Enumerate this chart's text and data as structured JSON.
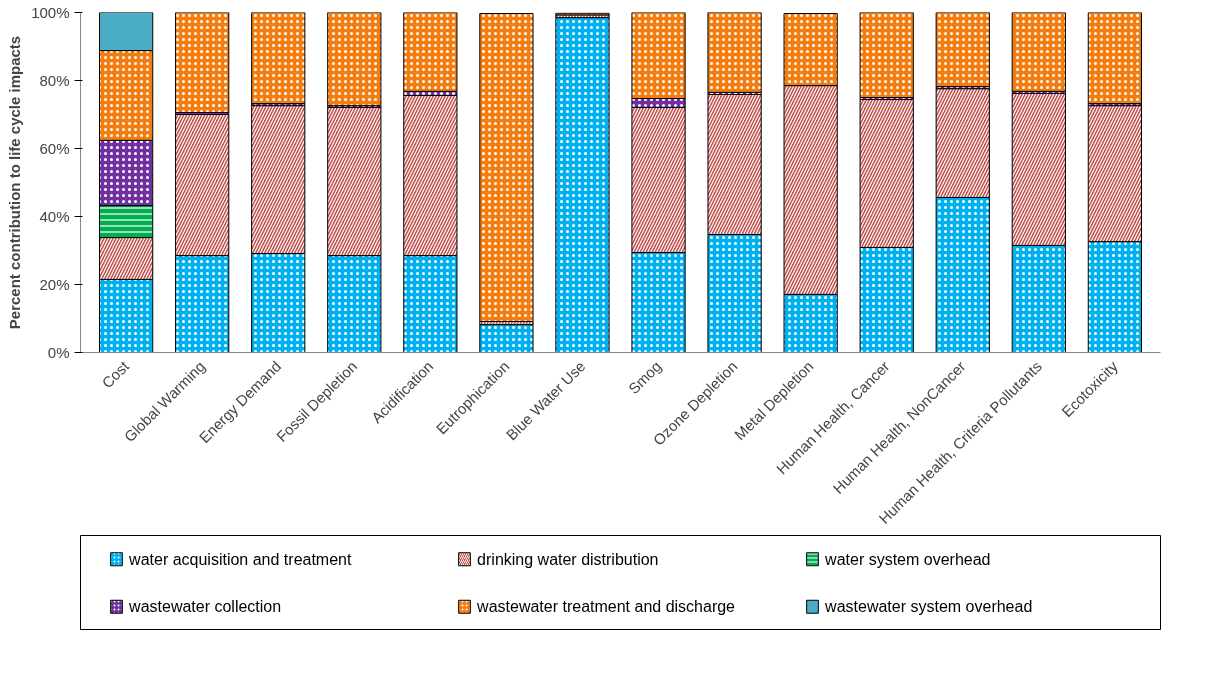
{
  "chart_data": {
    "type": "bar",
    "stacked": true,
    "ylabel": "Percent contribution to life cycle impacts",
    "categories": [
      "Cost",
      "Global Warming",
      "Energy Demand",
      "Fossil Depletion",
      "Acidification",
      "Eutrophication",
      "Blue Water Use",
      "Smog",
      "Ozone Depletion",
      "Metal Depletion",
      "Human Health, Cancer",
      "Human Health, NonCancer",
      "Human Health, Criteria Pollutants",
      "Ecotoxicity"
    ],
    "series": [
      {
        "name": "water acquisition and treatment",
        "color": "#00b0f0",
        "values": [
          21.5,
          28.5,
          29.1,
          28.5,
          28.5,
          8.2,
          98.5,
          29.4,
          34.7,
          17.1,
          30.9,
          45.6,
          31.5,
          32.6
        ]
      },
      {
        "name": "drinking water distribution",
        "color": "#c0504d",
        "values": [
          12.3,
          41.5,
          43.5,
          43.6,
          47.1,
          0.9,
          0.8,
          42.7,
          41.2,
          61.4,
          43.5,
          32.0,
          44.7,
          40.0
        ]
      },
      {
        "name": "water system overhead",
        "color": "#00b050",
        "values": [
          9.4,
          0,
          0,
          0,
          0,
          0,
          0,
          0,
          0,
          0,
          0,
          0,
          0,
          0
        ]
      },
      {
        "name": "wastewater collection",
        "color": "#7030a0",
        "values": [
          19.2,
          0.6,
          0.6,
          0.5,
          1.2,
          null,
          null,
          2.6,
          0.6,
          null,
          0.6,
          0.6,
          0.6,
          0.6
        ]
      },
      {
        "name": "wastewater treatment and discharge",
        "color": "#f57d0f",
        "values": [
          26.4,
          29.4,
          26.8,
          27.4,
          23.2,
          90.6,
          0.5,
          25.3,
          23.5,
          21.2,
          25.0,
          21.8,
          23.2,
          26.8
        ]
      },
      {
        "name": "wastewater system overhead",
        "color": "#4bacc6",
        "values": [
          11.2,
          0,
          0,
          0,
          0,
          0,
          0,
          0,
          0,
          0,
          0,
          0,
          0,
          0
        ]
      }
    ],
    "ylim": [
      0,
      100
    ],
    "yticks": [
      {
        "value": 0,
        "label": "0%"
      },
      {
        "value": 20,
        "label": "20%"
      },
      {
        "value": 40,
        "label": "40%"
      },
      {
        "value": 60,
        "label": "60%"
      },
      {
        "value": 80,
        "label": "80%"
      },
      {
        "value": 100,
        "label": "100%"
      }
    ],
    "grid": false,
    "legend": "bottom"
  }
}
